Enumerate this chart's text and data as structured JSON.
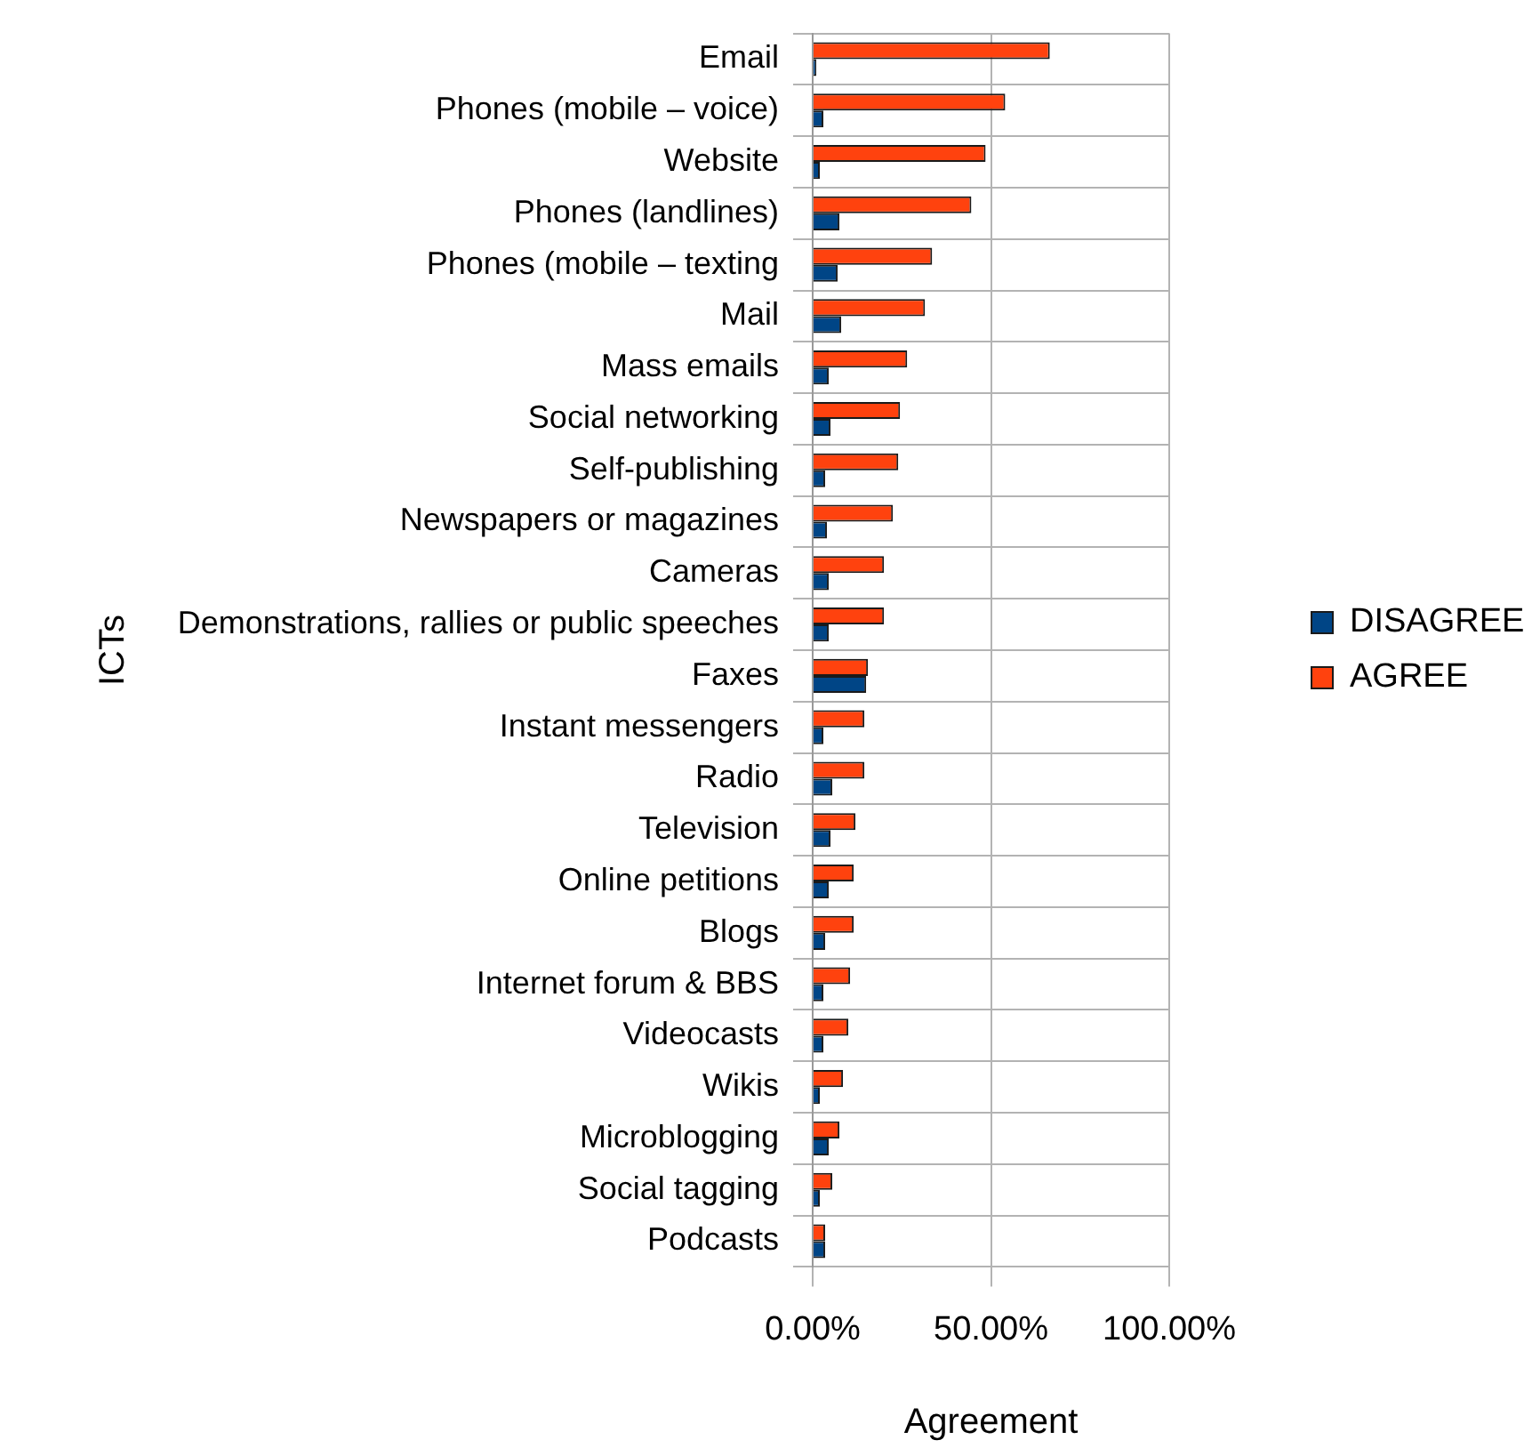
{
  "chart_data": {
    "type": "bar",
    "orientation": "horizontal",
    "categories": [
      "Email",
      "Phones (mobile – voice)",
      "Website",
      "Phones (landlines)",
      "Phones (mobile – texting",
      "Mail",
      "Mass emails",
      "Social networking",
      "Self-publishing",
      "Newspapers or magazines",
      "Cameras",
      "Demonstrations, rallies or public speeches",
      "Faxes",
      "Instant messengers",
      "Radio",
      "Television",
      "Online petitions",
      "Blogs",
      "Internet forum & BBS",
      "Videocasts",
      "Wikis",
      "Microblogging",
      "Social tagging",
      "Podcasts"
    ],
    "series": [
      {
        "name": "DISAGREE",
        "color": "#004586",
        "values": [
          1,
          3,
          2,
          7.5,
          7,
          8,
          4.5,
          5,
          3.5,
          4,
          4.5,
          4.5,
          15,
          3,
          5.5,
          5,
          4.5,
          3.5,
          3,
          3,
          2,
          4.5,
          2,
          3.5
        ]
      },
      {
        "name": "AGREE",
        "color": "#ff420e",
        "values": [
          66.5,
          54,
          48.5,
          44.5,
          33.5,
          31.5,
          26.5,
          24.5,
          24,
          22.5,
          20,
          20,
          15.5,
          14.5,
          14.5,
          12,
          11.5,
          11.5,
          10.5,
          10,
          8.5,
          7.5,
          5.5,
          3.5
        ]
      }
    ],
    "xlim": [
      0,
      100
    ],
    "xticks": [
      {
        "value": 0,
        "label": "0.00%"
      },
      {
        "value": 50,
        "label": "50.00%"
      },
      {
        "value": 100,
        "label": "100.00%"
      }
    ],
    "xlabel": "Agreement",
    "ylabel": "ICTs",
    "grid": true,
    "legend": "right"
  }
}
